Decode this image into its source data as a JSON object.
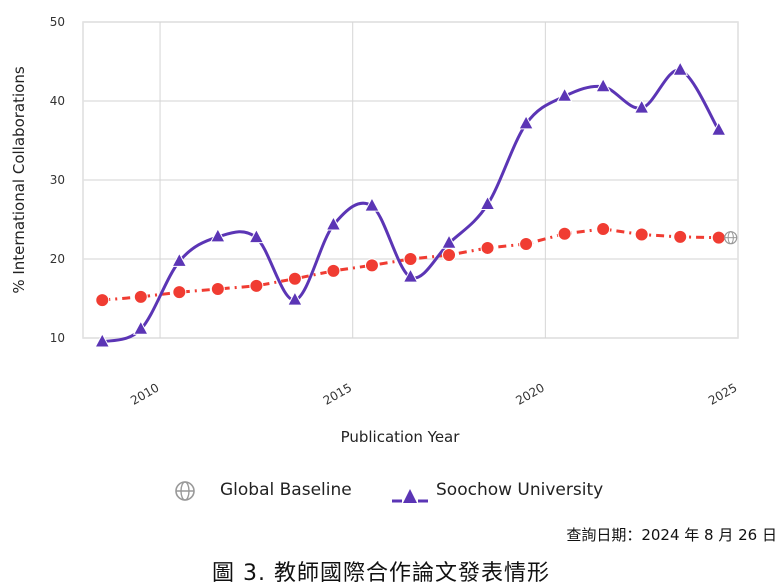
{
  "chart_data": {
    "type": "line",
    "title": "",
    "xlabel": "Publication Year",
    "ylabel": "% International Collaborations",
    "xlim": [
      2008,
      2025
    ],
    "ylim": [
      10,
      50
    ],
    "xticks": [
      2010,
      2015,
      2020,
      2025
    ],
    "yticks": [
      10,
      20,
      30,
      40,
      50
    ],
    "grid": true,
    "legend_position": "bottom",
    "x": [
      2008,
      2009,
      2010,
      2011,
      2012,
      2013,
      2014,
      2015,
      2016,
      2017,
      2018,
      2019,
      2020,
      2021,
      2022,
      2023,
      2024
    ],
    "series": [
      {
        "name": "Global Baseline",
        "color": "#f03c32",
        "style": "dash-dot",
        "marker": "circle",
        "values": [
          14.8,
          15.2,
          15.8,
          16.2,
          16.6,
          17.5,
          18.5,
          19.2,
          20.0,
          20.5,
          21.4,
          21.9,
          23.2,
          23.8,
          23.1,
          22.8,
          22.7
        ]
      },
      {
        "name": "Soochow University",
        "color": "#5b35b5",
        "style": "solid",
        "marker": "triangle",
        "values": [
          9.5,
          11.1,
          19.7,
          22.8,
          22.7,
          14.8,
          24.3,
          26.7,
          17.7,
          22.0,
          26.9,
          37.1,
          40.6,
          41.8,
          39.1,
          43.9,
          36.3
        ]
      }
    ]
  },
  "legend": {
    "baseline_label": "Global Baseline",
    "soochow_label": "Soochow University"
  },
  "query_date": "查詢日期：2024 年 8 月 26 日",
  "caption": "圖 3.  教師國際合作論文發表情形"
}
